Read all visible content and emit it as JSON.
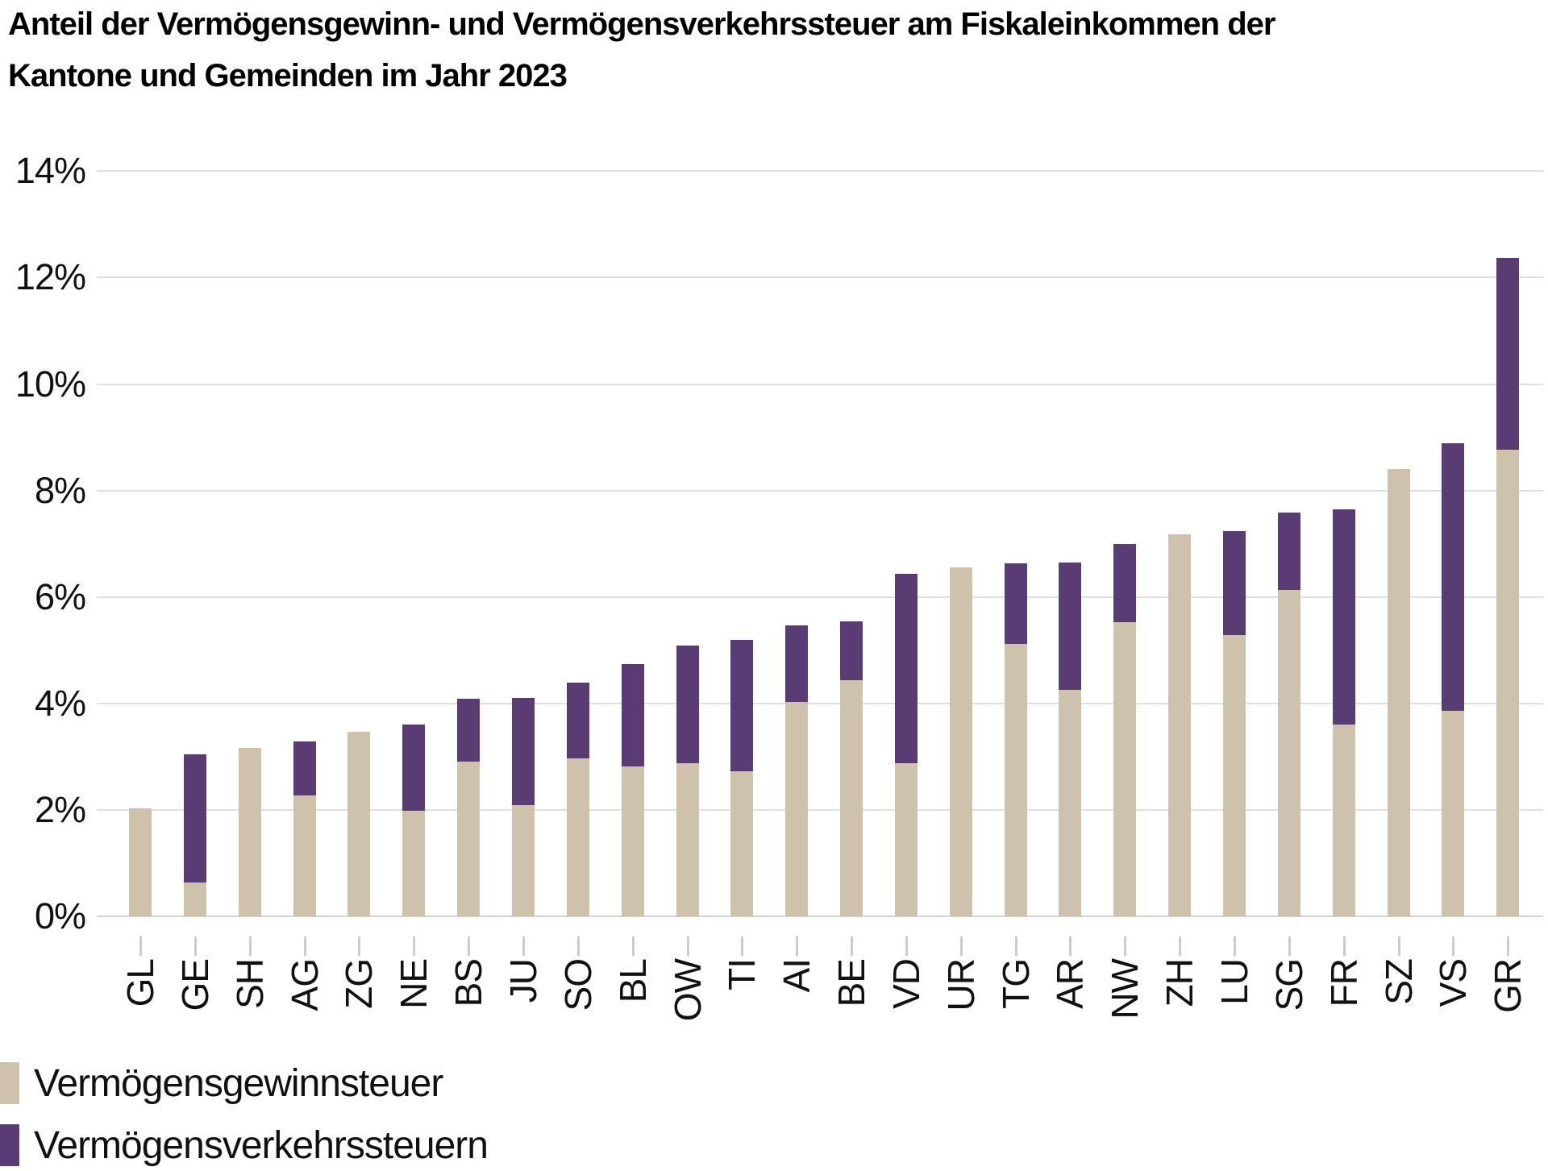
{
  "title": {
    "line1": "Anteil der Vermögensgewinn- und Vermögensverkehrssteuer am Fiskaleinkommen der",
    "line2": "Kantone und Gemeinden im Jahr 2023"
  },
  "y_axis": {
    "tick_labels": [
      "14%",
      "12%",
      "10%",
      "8%",
      "6%",
      "4%",
      "2%",
      "0%"
    ],
    "min": 0,
    "max": 14,
    "step": 2,
    "unit": "%"
  },
  "legend": {
    "items": [
      {
        "label": "Vermögensgewinnsteuer",
        "color": "#cfc2ac"
      },
      {
        "label": "Vermögensverkehrssteuern",
        "color": "#5a3c75"
      }
    ]
  },
  "chart_data": {
    "type": "bar",
    "stacked": true,
    "title": "Anteil der Vermögensgewinn- und Vermögensverkehrssteuer am Fiskaleinkommen der Kantone und Gemeinden im Jahr 2023",
    "xlabel": "",
    "ylabel": "",
    "unit": "%",
    "ylim": [
      0,
      14
    ],
    "grid": true,
    "legend_position": "bottom-left",
    "categories": [
      "GL",
      "GE",
      "SH",
      "AG",
      "ZG",
      "NE",
      "BS",
      "JU",
      "SO",
      "BL",
      "OW",
      "TI",
      "AI",
      "BE",
      "VD",
      "UR",
      "TG",
      "AR",
      "NW",
      "ZH",
      "LU",
      "SG",
      "FR",
      "SZ",
      "VS",
      "GR"
    ],
    "series": [
      {
        "name": "Vermögensgewinnsteuer",
        "color": "#cfc2ac",
        "values": [
          2.03,
          0.64,
          3.17,
          2.27,
          3.46,
          1.98,
          2.9,
          2.09,
          2.96,
          2.81,
          2.87,
          2.72,
          4.02,
          4.44,
          2.88,
          6.56,
          5.12,
          4.25,
          5.52,
          7.18,
          5.29,
          6.13,
          3.61,
          8.4,
          3.86,
          8.76
        ]
      },
      {
        "name": "Vermögensverkehrssteuern",
        "color": "#5a3c75",
        "values": [
          0,
          2.4,
          0,
          1.01,
          0,
          1.63,
          1.19,
          2.01,
          1.43,
          1.93,
          2.22,
          2.47,
          1.45,
          1.1,
          3.55,
          0,
          1.51,
          2.4,
          1.48,
          0,
          1.94,
          1.46,
          4.03,
          0,
          5.03,
          3.61
        ]
      }
    ],
    "totals": [
      2.03,
      3.04,
      3.17,
      3.28,
      3.46,
      3.61,
      4.09,
      4.1,
      4.39,
      4.74,
      5.09,
      5.19,
      5.47,
      5.54,
      6.43,
      6.56,
      6.63,
      6.65,
      7.0,
      7.18,
      7.23,
      7.59,
      7.64,
      8.4,
      8.89,
      12.37
    ]
  }
}
